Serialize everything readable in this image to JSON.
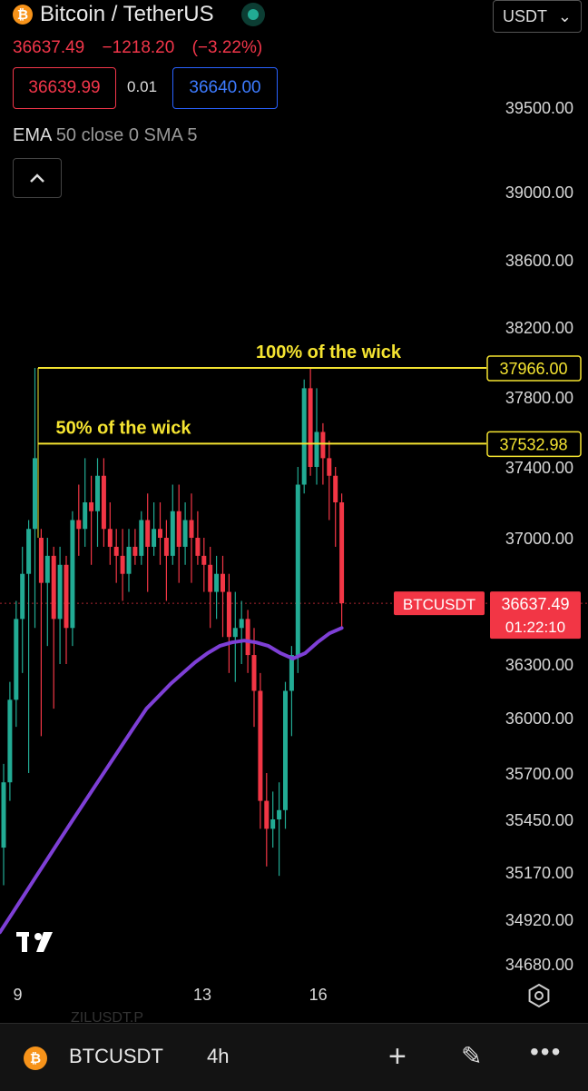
{
  "header": {
    "title": "Bitcoin / TetherUS",
    "icon": "bitcoin-icon",
    "last_price": "36637.49",
    "change": "−1218.20",
    "change_pct": "(−3.22%)",
    "bid": "36639.99",
    "spread": "0.01",
    "ask": "36640.00",
    "currency": "USDT",
    "indicator_name": "EMA",
    "indicator_params": "50 close 0 SMA 5",
    "collapse_icon": "chevron-up-icon"
  },
  "colors": {
    "up": "#22ab94",
    "down": "#f23645",
    "ema": "#7e3fd6",
    "levels": "#f5e431",
    "price_tag": "#f23645"
  },
  "chart_data": {
    "type": "candlestick",
    "symbol": "BTCUSDT",
    "interval": "4h",
    "y_ticks": [
      39500,
      39000,
      38600,
      38200,
      37800,
      37400,
      37000,
      36300,
      36000,
      35700,
      35450,
      35170,
      34920,
      34680
    ],
    "y_tick_labels": [
      "39500.00",
      "39000.00",
      "38600.00",
      "38200.00",
      "37800.00",
      "37400.00",
      "37000.00",
      "36300.00",
      "36000.00",
      "35700.00",
      "35450.00",
      "35170.00",
      "34920.00",
      "34680.00"
    ],
    "x_ticks": [
      {
        "label": "9",
        "index": 0.5
      },
      {
        "label": "13",
        "index": 30
      },
      {
        "label": "16",
        "index": 48.5
      }
    ],
    "levels": [
      {
        "label": "100% of the wick",
        "price": 37966.0,
        "price_label": "37966.00"
      },
      {
        "label": "50% of the wick",
        "price": 37532.98,
        "price_label": "37532.98"
      }
    ],
    "current_price": {
      "symbol": "BTCUSDT",
      "price": "36637.49",
      "countdown": "01:22:10"
    },
    "candles": [
      [
        35300,
        35650,
        35100,
        35750
      ],
      [
        35650,
        36100,
        35550,
        36200
      ],
      [
        36100,
        36550,
        35950,
        36650
      ],
      [
        36550,
        36800,
        36250,
        36950
      ],
      [
        36800,
        37050,
        35700,
        37100
      ],
      [
        37050,
        37450,
        36500,
        37966
      ],
      [
        37000,
        36750,
        35900,
        37050
      ],
      [
        36750,
        36900,
        36400,
        37000
      ],
      [
        36900,
        36550,
        36050,
        36950
      ],
      [
        36550,
        36850,
        36300,
        36950
      ],
      [
        36850,
        36500,
        36300,
        36900
      ],
      [
        36500,
        37100,
        36400,
        37150
      ],
      [
        37100,
        37050,
        36900,
        37300
      ],
      [
        37050,
        37200,
        36950,
        37450
      ],
      [
        37200,
        37150,
        36850,
        37350
      ],
      [
        37150,
        37350,
        36950,
        37450
      ],
      [
        37350,
        37050,
        36950,
        37450
      ],
      [
        37050,
        36950,
        36850,
        37200
      ],
      [
        36950,
        36900,
        36750,
        37050
      ],
      [
        36900,
        36800,
        36650,
        37050
      ],
      [
        36800,
        36950,
        36700,
        37050
      ],
      [
        36950,
        36900,
        36850,
        37050
      ],
      [
        36900,
        37100,
        36850,
        37150
      ],
      [
        37100,
        36950,
        36700,
        37250
      ],
      [
        36950,
        37050,
        36900,
        37200
      ],
      [
        37050,
        37000,
        36850,
        37200
      ],
      [
        37000,
        36900,
        36650,
        37100
      ],
      [
        36900,
        37150,
        36850,
        37300
      ],
      [
        37150,
        36950,
        36750,
        37300
      ],
      [
        36950,
        37100,
        36850,
        37200
      ],
      [
        37100,
        37000,
        36750,
        37250
      ],
      [
        37000,
        36900,
        36850,
        37150
      ],
      [
        36900,
        36850,
        36700,
        37000
      ],
      [
        36850,
        36700,
        36500,
        36950
      ],
      [
        36700,
        36800,
        36550,
        36900
      ],
      [
        36800,
        36700,
        36450,
        36900
      ],
      [
        36700,
        36450,
        36250,
        36800
      ],
      [
        36450,
        36500,
        36200,
        36700
      ],
      [
        36500,
        36550,
        36300,
        36650
      ],
      [
        36550,
        36350,
        36250,
        36600
      ],
      [
        36350,
        36150,
        35950,
        36500
      ],
      [
        36150,
        35550,
        35400,
        36250
      ],
      [
        35550,
        35400,
        35200,
        35700
      ],
      [
        35400,
        35450,
        35300,
        35600
      ],
      [
        35450,
        35500,
        35150,
        35650
      ],
      [
        35500,
        36150,
        35400,
        36200
      ],
      [
        36150,
        36350,
        35900,
        36400
      ],
      [
        36350,
        37300,
        36250,
        37400
      ],
      [
        37300,
        37850,
        37250,
        37900
      ],
      [
        37850,
        37400,
        37350,
        37966
      ],
      [
        37400,
        37600,
        37300,
        37850
      ],
      [
        37600,
        37450,
        37300,
        37650
      ],
      [
        37450,
        37350,
        37100,
        37550
      ],
      [
        37350,
        37200,
        36950,
        37400
      ],
      [
        37200,
        36637,
        36500,
        37250
      ]
    ],
    "ema": [
      34850,
      34950,
      35050,
      35150,
      35250,
      35350,
      35450,
      35550,
      35650,
      35750,
      35850,
      35950,
      36050,
      36120,
      36190,
      36250,
      36310,
      36360,
      36400,
      36420,
      36430,
      36420,
      36400,
      36360,
      36330,
      36360,
      36420,
      36470,
      36500
    ]
  },
  "footer": {
    "symbol": "BTCUSDT",
    "interval": "4h",
    "icons": {
      "add": "plus-icon",
      "draw": "pen-icon",
      "more": "more-icon",
      "logo": "tradingview-logo-icon",
      "settings": "settings-hex-icon"
    },
    "peek_text": "ZILUSDT.P"
  }
}
